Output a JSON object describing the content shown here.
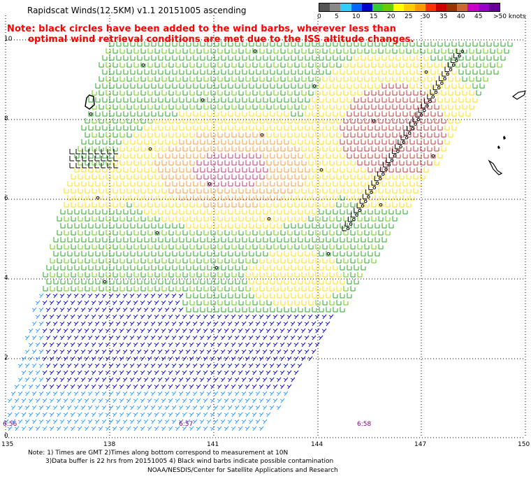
{
  "title": "Rapidscat Winds(12.5KM) v1.1 20151005 ascending",
  "note_line1": "Note: black circles have been added to the wind barbs, wherever less than",
  "note_line2": "optimal wind retrieval conditions are met due to the ISS altitude changes.",
  "legend": {
    "ticks": [
      "0",
      "5",
      "10",
      "15",
      "20",
      "25",
      "30",
      "35",
      "40",
      "45",
      ">50 knots"
    ],
    "colors": [
      "#555555",
      "#888888",
      "#33ccff",
      "#0066ff",
      "#0000cc",
      "#33cc33",
      "#66cc00",
      "#ffff00",
      "#ffcc00",
      "#ff9900",
      "#ff3300",
      "#cc0000",
      "#993300",
      "#cc6633",
      "#cc00cc",
      "#9900cc",
      "#660099"
    ]
  },
  "lat_labels": [
    "10",
    "8",
    "6",
    "4",
    "2",
    "0"
  ],
  "lon_labels": [
    "135",
    "138",
    "141",
    "144",
    "147",
    "150"
  ],
  "time_labels": [
    "6:56",
    "6:57",
    "6:58"
  ],
  "footer": {
    "line1": "Note: 1) Times are GMT 2)Times along bottom correspond to measurement at 10N",
    "line2": "3)Data buffer is 22 hrs from 20151005 4) Black wind barbs indicate possible contamination",
    "line3": "NOAA/NESDIS/Center for Satellite Applications and Research"
  }
}
